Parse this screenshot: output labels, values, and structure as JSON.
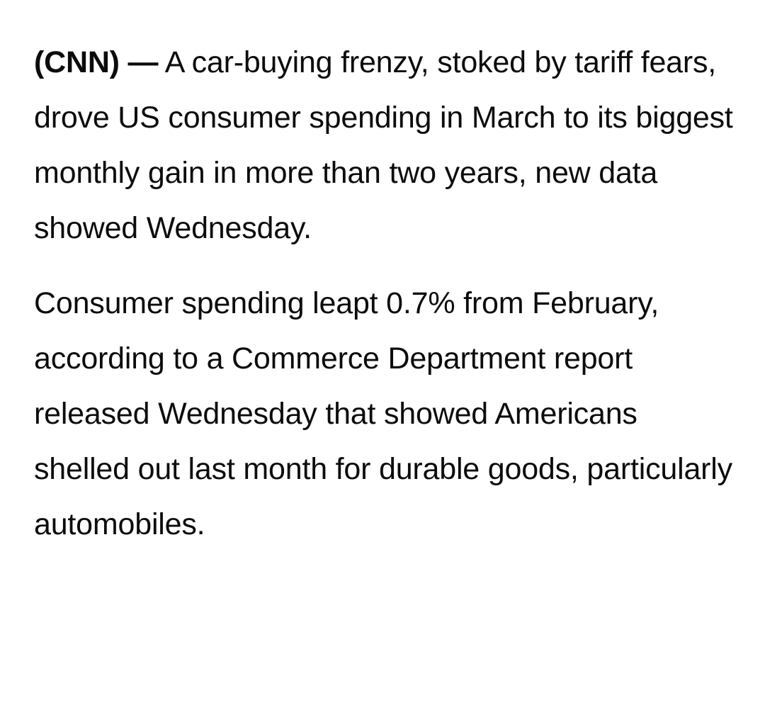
{
  "article": {
    "source": "(CNN) —",
    "paragraphs": [
      "A car-buying frenzy, stoked by tariff fears, drove US consumer spending in March to its biggest monthly gain in more than two years, new data showed Wednesday.",
      "Consumer spending leapt 0.7% from February, according to a Commerce Department report released Wednesday that showed Americans shelled out last month for durable goods, particularly automobiles."
    ]
  }
}
